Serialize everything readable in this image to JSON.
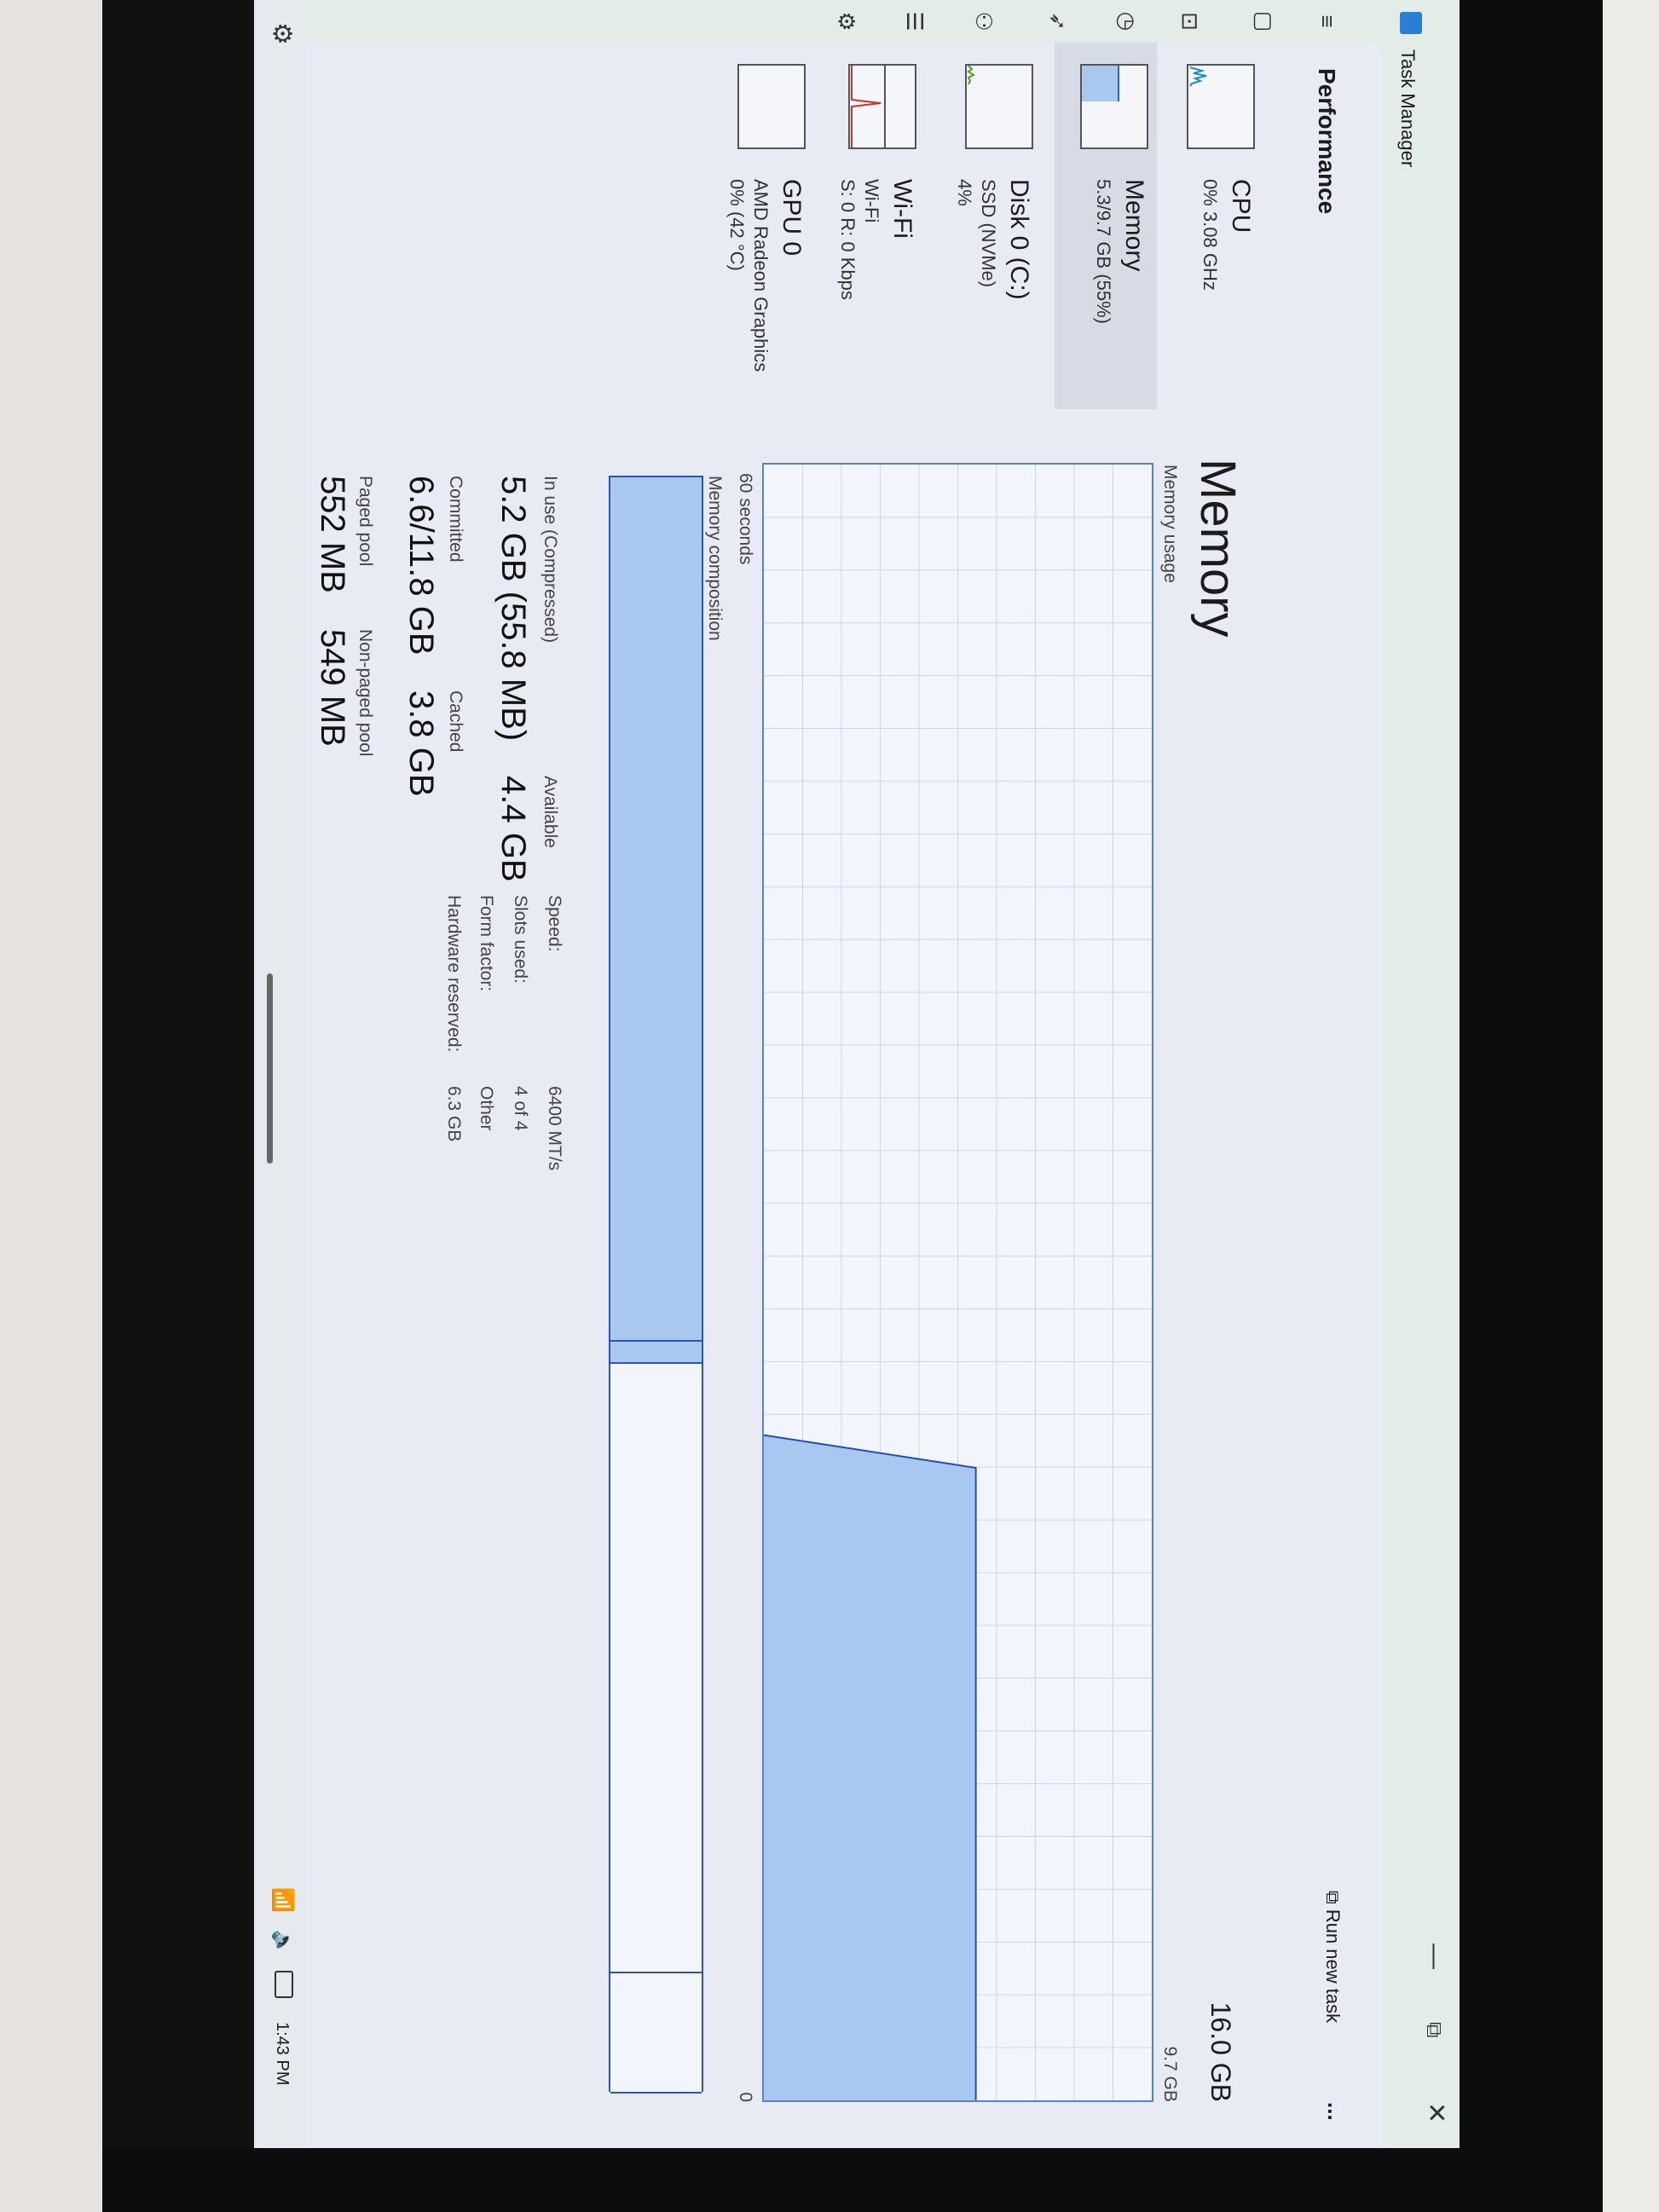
{
  "window": {
    "title": "Task Manager",
    "minimize_icon": "minimize-icon",
    "maximize_icon": "maximize-icon",
    "close_icon": "close-icon"
  },
  "nav_icons": [
    "hamburger-icon",
    "processes-icon",
    "performance-icon",
    "app-history-icon",
    "startup-icon",
    "users-icon",
    "details-icon",
    "services-icon"
  ],
  "header": {
    "title": "Performance",
    "run_new_task": "Run new task",
    "more": "..."
  },
  "perf_list": [
    {
      "title": "CPU",
      "sub1": "0% 3.08 GHz",
      "sub2": "",
      "color": "#1b8fb5"
    },
    {
      "title": "Memory",
      "sub1": "5.3/9.7 GB (55%)",
      "sub2": "",
      "color": "#2d64c8",
      "selected": true
    },
    {
      "title": "Disk 0 (C:)",
      "sub1": "SSD (NVMe)",
      "sub2": "4%",
      "color": "#5a9a2a"
    },
    {
      "title": "Wi-Fi",
      "sub1": "Wi-Fi",
      "sub2": "S: 0 R: 0 Kbps",
      "color": "#c0392b"
    },
    {
      "title": "GPU 0",
      "sub1": "AMD Radeon Graphics",
      "sub2": "0% (42 °C)",
      "color": "#2d3fa0"
    }
  ],
  "memory": {
    "title": "Memory",
    "total": "16.0 GB",
    "usage_label": "Memory usage",
    "usage_max": "9.7 GB",
    "time_label": "60 seconds",
    "time_end": "0",
    "composition_label": "Memory composition",
    "stats": {
      "in_use_label": "In use (Compressed)",
      "in_use_value": "5.2 GB (55.8 MB)",
      "available_label": "Available",
      "available_value": "4.4 GB",
      "committed_label": "Committed",
      "committed_value": "6.6/11.8 GB",
      "cached_label": "Cached",
      "cached_value": "3.8 GB",
      "paged_label": "Paged pool",
      "paged_value": "552 MB",
      "nonpaged_label": "Non-paged pool",
      "nonpaged_value": "549 MB"
    },
    "specs": [
      {
        "label": "Speed:",
        "value": "6400 MT/s"
      },
      {
        "label": "Slots used:",
        "value": "4 of 4"
      },
      {
        "label": "Form factor:",
        "value": "Other"
      },
      {
        "label": "Hardware reserved:",
        "value": "6.3 GB"
      }
    ]
  },
  "taskbar": {
    "settings_icon": "gear-icon",
    "tray_icons": [
      "wifi-icon",
      "volume-icon",
      "battery-icon"
    ],
    "clock": "1:43 PM"
  },
  "chart_data": {
    "type": "area",
    "xlabel": "60 seconds",
    "xlim": [
      60,
      0
    ],
    "ylim": [
      0,
      9.7
    ],
    "ymax_label": "9.7 GB",
    "grid": true,
    "series": [
      {
        "x_seconds_ago": [
          24.4,
          23.2,
          0
        ],
        "values": [
          0,
          5.3,
          5.3
        ]
      }
    ],
    "composition": {
      "in_use": 5.2,
      "modified": 0.13,
      "standby": 3.67,
      "free": 0.72
    },
    "colors": {
      "fill": "#a9c8f0",
      "line": "#1f4fb0"
    }
  }
}
